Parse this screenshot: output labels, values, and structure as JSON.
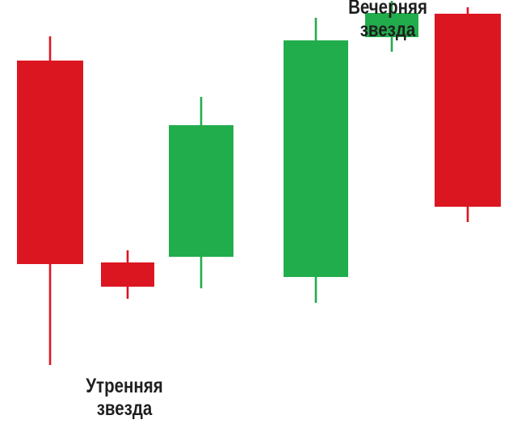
{
  "labels": {
    "morning_star_line1": "Утренняя",
    "morning_star_line2": "звезда",
    "evening_star_line1": "Вечерняя",
    "evening_star_line2": "звезда"
  },
  "colors": {
    "bearish": "#dc1620",
    "bullish": "#22ad4c",
    "text": "#1f1f1f",
    "background": "#ffffff"
  },
  "candles": [
    {
      "direction": "bearish",
      "open": 377,
      "close": 125,
      "high": 407,
      "low": 0
    },
    {
      "direction": "bearish",
      "open": 127,
      "close": 97,
      "high": 142,
      "low": 82
    },
    {
      "direction": "bullish",
      "open": 134,
      "close": 297,
      "high": 332,
      "low": 95
    },
    {
      "direction": "bullish",
      "open": 109,
      "close": 402,
      "high": 430,
      "low": 77
    },
    {
      "direction": "bullish",
      "open": 406,
      "close": 436,
      "high": 451,
      "low": 388
    },
    {
      "direction": "bearish",
      "open": 435,
      "close": 196,
      "high": 443,
      "low": 177
    }
  ]
}
